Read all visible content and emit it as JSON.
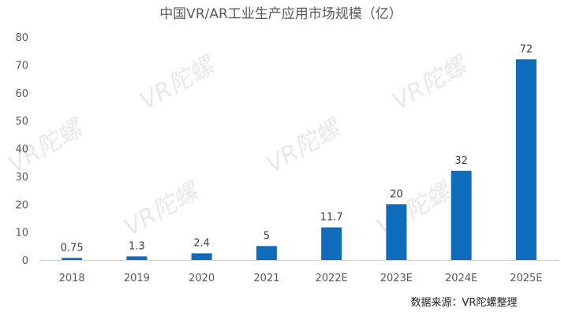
{
  "chart_data": {
    "type": "bar",
    "title": "中国VR/AR工业生产应用市场规模（亿）",
    "categories": [
      "2018",
      "2019",
      "2020",
      "2021",
      "2022E",
      "2023E",
      "2024E",
      "2025E"
    ],
    "values": [
      0.75,
      1.3,
      2.4,
      5,
      11.7,
      20,
      32,
      72
    ],
    "value_labels": [
      "0.75",
      "1.3",
      "2.4",
      "5",
      "11.7",
      "20",
      "32",
      "72"
    ],
    "y_ticks": [
      0,
      10,
      20,
      30,
      40,
      50,
      60,
      70,
      80
    ],
    "ylim": [
      0,
      80
    ],
    "xlabel": "",
    "ylabel": "",
    "grid": false,
    "bar_color": "#0f6cbd"
  },
  "source_note": "数据来源：VR陀螺整理",
  "watermark": "VR陀螺"
}
